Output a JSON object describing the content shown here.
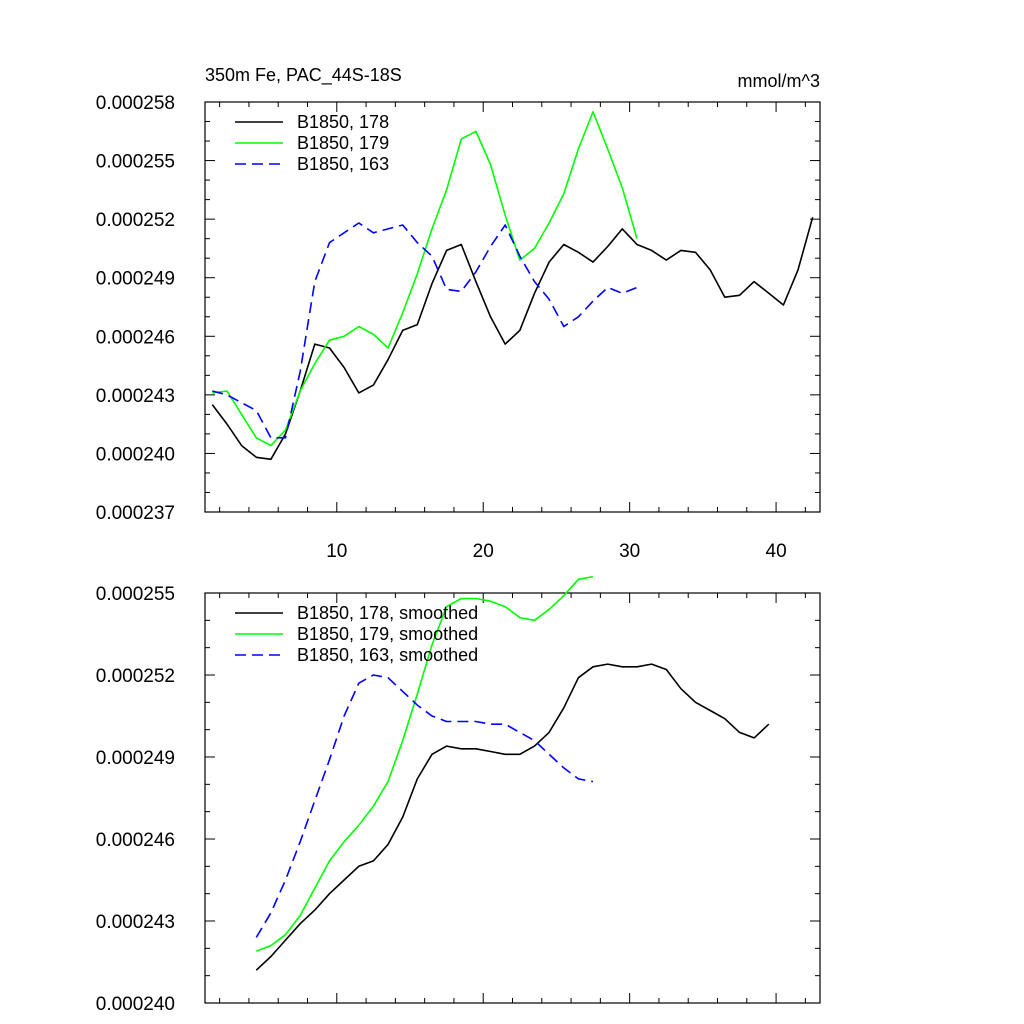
{
  "chart_data": [
    {
      "type": "line",
      "title": "350m Fe, PAC_44S-18S",
      "units": "mmol/m^3",
      "xlim": [
        1,
        43
      ],
      "ylim": [
        0.000237,
        0.000258
      ],
      "x_major_ticks": [
        10,
        20,
        30,
        40
      ],
      "x_tick_labels": [
        "10",
        "20",
        "30",
        "40"
      ],
      "y_major_ticks": [
        0.000237,
        0.00024,
        0.000243,
        0.000246,
        0.000249,
        0.000252,
        0.000255,
        0.000258
      ],
      "y_tick_labels": [
        "0.000237",
        "0.000240",
        "0.000243",
        "0.000246",
        "0.000249",
        "0.000252",
        "0.000255",
        "0.000258"
      ],
      "legend": "top-left",
      "series": [
        {
          "name": "B1850, 178",
          "color": "#000000",
          "dash": "solid",
          "x": [
            1.5,
            2.5,
            3.5,
            4.5,
            5.5,
            6.5,
            7.5,
            8.5,
            9.5,
            10.5,
            11.5,
            12.5,
            13.5,
            14.5,
            15.5,
            16.5,
            17.5,
            18.5,
            19.5,
            20.5,
            21.5,
            22.5,
            23.5,
            24.5,
            25.5,
            26.5,
            27.5,
            28.5,
            29.5,
            30.5,
            31.5,
            32.5,
            33.5,
            34.5,
            35.5,
            36.5,
            37.5,
            38.5,
            39.5,
            40.5,
            41.5,
            42.5
          ],
          "values": [
            0.0002425,
            0.0002415,
            0.0002404,
            0.0002398,
            0.0002397,
            0.000241,
            0.0002432,
            0.0002456,
            0.0002454,
            0.0002444,
            0.0002431,
            0.0002435,
            0.0002448,
            0.0002463,
            0.0002466,
            0.0002487,
            0.0002504,
            0.0002507,
            0.0002488,
            0.000247,
            0.0002456,
            0.0002463,
            0.0002482,
            0.0002498,
            0.0002507,
            0.0002503,
            0.0002498,
            0.0002506,
            0.0002515,
            0.0002507,
            0.0002504,
            0.0002499,
            0.0002504,
            0.0002503,
            0.0002494,
            0.000248,
            0.0002481,
            0.0002488,
            0.0002482,
            0.0002476,
            0.0002494,
            0.0002521
          ]
        },
        {
          "name": "B1850, 179",
          "color": "#00ff00",
          "dash": "solid",
          "x": [
            1.5,
            2.5,
            3.5,
            4.5,
            5.5,
            6.5,
            7.5,
            8.5,
            9.5,
            10.5,
            11.5,
            12.5,
            13.5,
            14.5,
            15.5,
            16.5,
            17.5,
            18.5,
            19.5,
            20.5,
            21.5,
            22.5,
            23.5,
            24.5,
            25.5,
            26.5,
            27.5,
            28.5,
            29.5,
            30.5
          ],
          "values": [
            0.0002431,
            0.0002432,
            0.000242,
            0.0002408,
            0.0002404,
            0.0002412,
            0.0002432,
            0.0002446,
            0.0002458,
            0.000246,
            0.0002465,
            0.0002461,
            0.0002454,
            0.0002472,
            0.0002492,
            0.0002515,
            0.0002535,
            0.0002561,
            0.0002565,
            0.0002548,
            0.0002522,
            0.0002499,
            0.0002505,
            0.0002518,
            0.0002533,
            0.0002556,
            0.0002575,
            0.0002556,
            0.0002536,
            0.000251
          ]
        },
        {
          "name": "B1850, 163",
          "color": "#0000ff",
          "dash": "dashed",
          "x": [
            1.5,
            2.5,
            3.5,
            4.5,
            5.5,
            6.5,
            7.5,
            8.5,
            9.5,
            10.5,
            11.5,
            12.5,
            13.5,
            14.5,
            15.5,
            16.5,
            17.5,
            18.5,
            19.5,
            20.5,
            21.5,
            22.5,
            23.5,
            24.5,
            25.5,
            26.5,
            27.5,
            28.5,
            29.5,
            30.5
          ],
          "values": [
            0.0002432,
            0.000243,
            0.0002426,
            0.0002422,
            0.0002408,
            0.0002408,
            0.0002442,
            0.0002488,
            0.0002508,
            0.0002513,
            0.0002518,
            0.0002513,
            0.0002515,
            0.0002517,
            0.0002508,
            0.0002501,
            0.0002484,
            0.0002483,
            0.0002493,
            0.0002506,
            0.0002517,
            0.0002501,
            0.0002488,
            0.0002479,
            0.0002465,
            0.000247,
            0.0002478,
            0.0002485,
            0.0002482,
            0.0002485
          ]
        }
      ]
    },
    {
      "type": "line",
      "xlim": [
        1,
        43
      ],
      "ylim": [
        0.00024,
        0.000255
      ],
      "x_major_ticks": [
        10,
        20,
        30,
        40
      ],
      "y_major_ticks": [
        0.00024,
        0.000243,
        0.000246,
        0.000249,
        0.000252,
        0.000255
      ],
      "y_tick_labels": [
        "0.000240",
        "0.000243",
        "0.000246",
        "0.000249",
        "0.000252",
        "0.000255"
      ],
      "legend": "top-left",
      "series": [
        {
          "name": "B1850, 178, smoothed",
          "color": "#000000",
          "dash": "solid",
          "x": [
            4.5,
            5.5,
            6.5,
            7.5,
            8.5,
            9.5,
            10.5,
            11.5,
            12.5,
            13.5,
            14.5,
            15.5,
            16.5,
            17.5,
            18.5,
            19.5,
            20.5,
            21.5,
            22.5,
            23.5,
            24.5,
            25.5,
            26.5,
            27.5,
            28.5,
            29.5,
            30.5,
            31.5,
            32.5,
            33.5,
            34.5,
            35.5,
            36.5,
            37.5,
            38.5,
            39.5
          ],
          "values": [
            0.0002412,
            0.0002417,
            0.0002423,
            0.0002429,
            0.0002434,
            0.000244,
            0.0002445,
            0.000245,
            0.0002452,
            0.0002458,
            0.0002468,
            0.0002482,
            0.0002491,
            0.0002494,
            0.0002493,
            0.0002493,
            0.0002492,
            0.0002491,
            0.0002491,
            0.0002494,
            0.0002499,
            0.0002508,
            0.0002519,
            0.0002523,
            0.0002524,
            0.0002523,
            0.0002523,
            0.0002524,
            0.0002522,
            0.0002515,
            0.000251,
            0.0002507,
            0.0002504,
            0.0002499,
            0.0002497,
            0.0002502
          ]
        },
        {
          "name": "B1850, 179, smoothed",
          "color": "#00ff00",
          "dash": "solid",
          "x": [
            4.5,
            5.5,
            6.5,
            7.5,
            8.5,
            9.5,
            10.5,
            11.5,
            12.5,
            13.5,
            14.5,
            15.5,
            16.5,
            17.5,
            18.5,
            19.5,
            20.5,
            21.5,
            22.5,
            23.5,
            24.5,
            25.5,
            26.5,
            27.5
          ],
          "values": [
            0.0002419,
            0.0002421,
            0.0002425,
            0.0002432,
            0.0002442,
            0.0002452,
            0.0002459,
            0.0002465,
            0.0002472,
            0.0002481,
            0.0002496,
            0.0002513,
            0.0002531,
            0.0002545,
            0.0002548,
            0.0002548,
            0.0002547,
            0.0002545,
            0.0002541,
            0.000254,
            0.0002544,
            0.0002549,
            0.0002555,
            0.0002556
          ]
        },
        {
          "name": "B1850, 163, smoothed",
          "color": "#0000ff",
          "dash": "dashed",
          "x": [
            4.5,
            5.5,
            6.5,
            7.5,
            8.5,
            9.5,
            10.5,
            11.5,
            12.5,
            13.5,
            14.5,
            15.5,
            16.5,
            17.5,
            18.5,
            19.5,
            20.5,
            21.5,
            22.5,
            23.5,
            24.5,
            25.5,
            26.5,
            27.5
          ],
          "values": [
            0.0002424,
            0.0002433,
            0.0002445,
            0.0002459,
            0.0002474,
            0.0002489,
            0.0002505,
            0.0002517,
            0.000252,
            0.0002519,
            0.0002514,
            0.0002509,
            0.0002505,
            0.0002503,
            0.0002503,
            0.0002503,
            0.0002502,
            0.0002502,
            0.0002499,
            0.0002496,
            0.0002491,
            0.0002486,
            0.0002482,
            0.0002481
          ]
        }
      ]
    }
  ]
}
